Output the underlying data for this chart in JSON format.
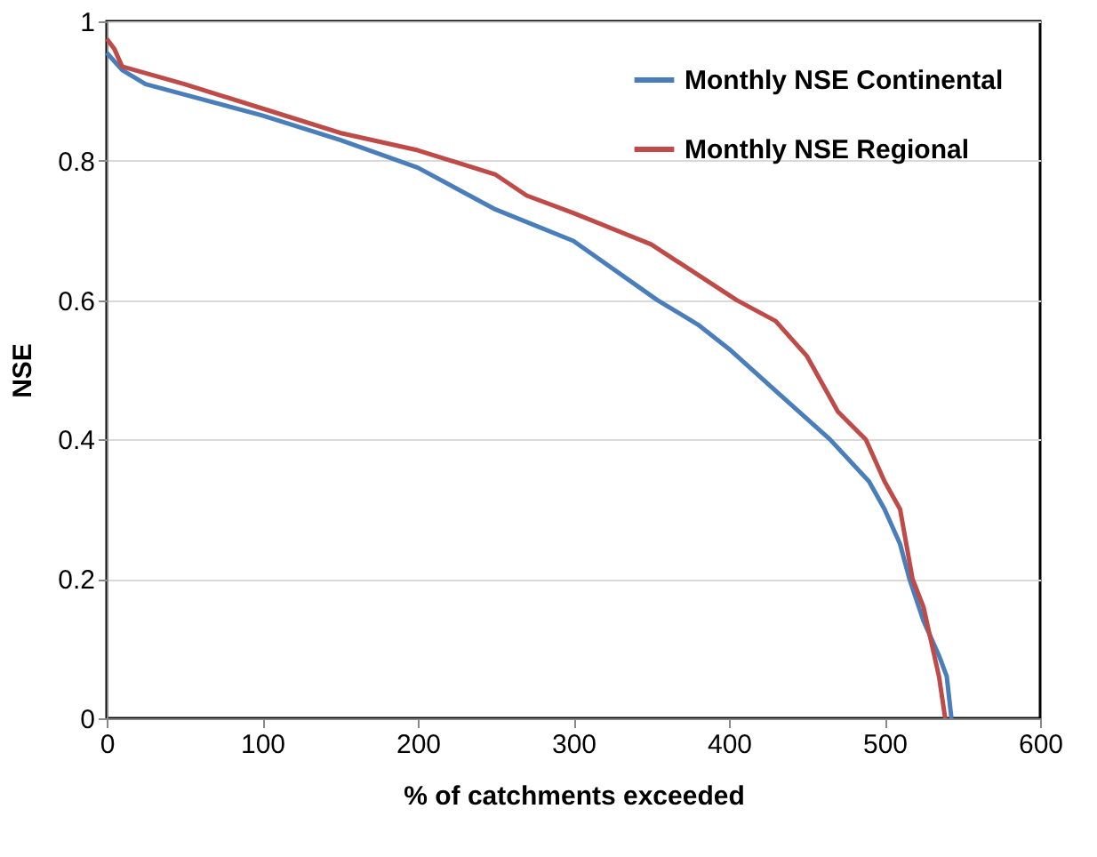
{
  "chart_data": {
    "type": "line",
    "xlabel": "% of catchments exceeded",
    "ylabel": "NSE",
    "xlim": [
      0,
      600
    ],
    "xticks": [
      0,
      100,
      200,
      300,
      400,
      500,
      600
    ],
    "ylim": [
      0,
      1
    ],
    "yticks": [
      0,
      0.2,
      0.4,
      0.6,
      0.8,
      1
    ],
    "grid": "y",
    "legend": "top right",
    "marker": "none",
    "line_style": "solid",
    "series": [
      {
        "name": "Monthly NSE Continental",
        "color": "#4a7ebb",
        "x": [
          0,
          10,
          25,
          50,
          100,
          150,
          200,
          250,
          300,
          354,
          380,
          400,
          430,
          465,
          490,
          500,
          510,
          516,
          525,
          535,
          540,
          543
        ],
        "values": [
          0.955,
          0.93,
          0.91,
          0.895,
          0.865,
          0.83,
          0.79,
          0.73,
          0.685,
          0.6,
          0.565,
          0.53,
          0.47,
          0.4,
          0.34,
          0.3,
          0.25,
          0.2,
          0.14,
          0.09,
          0.06,
          0
        ]
      },
      {
        "name": "Monthly NSE Regional",
        "color": "#be4b48",
        "x": [
          0,
          5,
          10,
          50,
          100,
          150,
          200,
          250,
          270,
          300,
          350,
          405,
          430,
          450,
          470,
          488,
          500,
          510,
          518,
          525,
          530,
          535,
          539
        ],
        "values": [
          0.975,
          0.96,
          0.935,
          0.91,
          0.875,
          0.84,
          0.815,
          0.78,
          0.75,
          0.725,
          0.68,
          0.6,
          0.57,
          0.52,
          0.44,
          0.4,
          0.34,
          0.3,
          0.2,
          0.16,
          0.11,
          0.06,
          0
        ]
      }
    ]
  }
}
